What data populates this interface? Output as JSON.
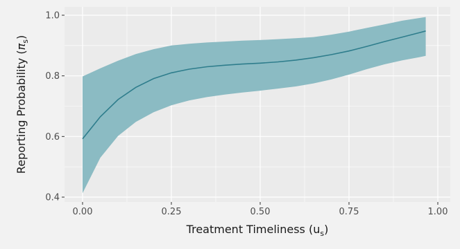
{
  "chart_data": {
    "type": "line",
    "title": "",
    "xlabel": "Treatment Timeliness (u",
    "xlabel_subscript": "s",
    "xlabel_suffix": ")",
    "ylabel": "Reporting Probability (",
    "ylabel_symbol": "π",
    "ylabel_subscript": "s",
    "ylabel_suffix": ")",
    "xlim": [
      0,
      1
    ],
    "ylim": [
      0.4,
      1.0
    ],
    "x_ticks": [
      0,
      0.25,
      0.5,
      0.75,
      1
    ],
    "x_tick_labels": [
      "0.00",
      "0.25",
      "0.50",
      "0.75",
      "1.00"
    ],
    "y_ticks": [
      0.4,
      0.6,
      0.8,
      1.0
    ],
    "y_tick_labels": [
      "0.4",
      "0.6",
      "0.8",
      "1.0"
    ],
    "grid": true,
    "legend": "none",
    "colors": {
      "line": "#2e7d8c",
      "band": "#8bbbc3",
      "panel": "#ebebeb",
      "grid": "#ffffff"
    },
    "x": [
      0.0,
      0.05,
      0.1,
      0.15,
      0.2,
      0.25,
      0.3,
      0.35,
      0.4,
      0.45,
      0.5,
      0.55,
      0.6,
      0.65,
      0.7,
      0.75,
      0.8,
      0.85,
      0.9,
      0.95,
      0.966
    ],
    "mean": [
      0.592,
      0.665,
      0.722,
      0.762,
      0.791,
      0.81,
      0.822,
      0.83,
      0.835,
      0.839,
      0.842,
      0.846,
      0.852,
      0.86,
      0.87,
      0.882,
      0.897,
      0.913,
      0.928,
      0.943,
      0.948
    ],
    "lower": [
      0.413,
      0.53,
      0.602,
      0.648,
      0.68,
      0.703,
      0.719,
      0.73,
      0.738,
      0.745,
      0.751,
      0.758,
      0.765,
      0.775,
      0.788,
      0.804,
      0.822,
      0.838,
      0.851,
      0.862,
      0.866
    ],
    "upper": [
      0.798,
      0.825,
      0.85,
      0.872,
      0.888,
      0.9,
      0.906,
      0.91,
      0.913,
      0.916,
      0.918,
      0.921,
      0.924,
      0.928,
      0.936,
      0.946,
      0.958,
      0.97,
      0.982,
      0.991,
      0.994
    ]
  }
}
